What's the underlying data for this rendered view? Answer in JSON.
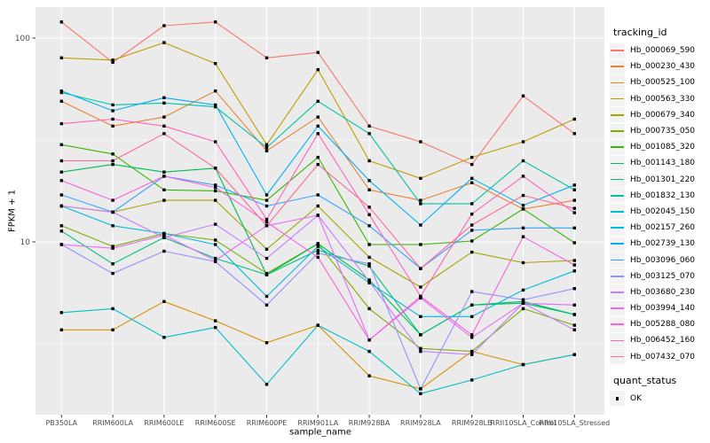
{
  "chart_data": {
    "type": "line",
    "title": "",
    "xlabel": "sample_name",
    "ylabel": "FPKM + 1",
    "y_scale": "log10",
    "y_ticks": [
      100,
      10
    ],
    "y_minor_ticks": [
      31.6,
      3.16
    ],
    "ylim_approx": [
      1.4,
      142
    ],
    "grid": "white-on-gray",
    "legend_position": "right",
    "point_shape": "filled-black-square",
    "categories": [
      "PB350LA",
      "RRIM600LA",
      "RRIM600LE",
      "RRIM600SE",
      "RRIM600PE",
      "RRIM901LA",
      "RRIM928BA",
      "RRIM928LA",
      "RRIM928LB",
      "RRII105LA_Control",
      "RRII105LA_Stressed"
    ],
    "series": [
      {
        "name": "Hb_000069_590",
        "color": "#F8766D",
        "values": [
          120,
          76,
          115,
          120,
          80,
          85,
          37,
          31,
          24,
          52,
          34
        ]
      },
      {
        "name": "Hb_000230_430",
        "color": "#EA8331",
        "values": [
          49,
          37,
          41,
          55,
          28,
          41,
          18,
          16,
          19.5,
          14.5,
          16
        ]
      },
      {
        "name": "Hb_000525_100",
        "color": "#D89000",
        "values": [
          3.7,
          3.7,
          5.1,
          4.1,
          3.2,
          3.9,
          2.2,
          1.9,
          2.9,
          2.5,
          2.8
        ]
      },
      {
        "name": "Hb_000563_330",
        "color": "#C09B00",
        "values": [
          80,
          78,
          95,
          75,
          30,
          70,
          25,
          20.5,
          26,
          31,
          40
        ]
      },
      {
        "name": "Hb_000679_340",
        "color": "#A3A500",
        "values": [
          15,
          14,
          16,
          16,
          9.2,
          15,
          8.4,
          6.0,
          8.9,
          7.9,
          8.1
        ]
      },
      {
        "name": "Hb_000735_050",
        "color": "#7CAE00",
        "values": [
          12,
          9.5,
          11,
          10.2,
          7.0,
          9.8,
          4.7,
          3.0,
          2.9,
          4.7,
          3.9
        ]
      },
      {
        "name": "Hb_001085_320",
        "color": "#39B600",
        "values": [
          30,
          27,
          18,
          17.8,
          16,
          26,
          9.7,
          9.7,
          10.1,
          14.5,
          9.9
        ]
      },
      {
        "name": "Hb_001143_180",
        "color": "#00BB4E",
        "values": [
          22,
          24,
          22,
          23,
          6.9,
          9.8,
          6.5,
          3.5,
          4.9,
          5.1,
          4.4
        ]
      },
      {
        "name": "Hb_001301_220",
        "color": "#00BF7D",
        "values": [
          11.3,
          7.8,
          10.5,
          8.3,
          6.9,
          9.1,
          7.6,
          3.5,
          4.9,
          5.0,
          4.4
        ]
      },
      {
        "name": "Hb_001832_130",
        "color": "#00C1A3",
        "values": [
          54,
          47,
          48,
          46,
          29,
          49,
          34,
          15.4,
          15.4,
          25,
          18
        ]
      },
      {
        "name": "Hb_002045_150",
        "color": "#00BFC4",
        "values": [
          4.5,
          4.7,
          3.4,
          3.8,
          2.0,
          3.9,
          2.9,
          1.8,
          2.1,
          2.5,
          2.8
        ]
      },
      {
        "name": "Hb_002157_260",
        "color": "#00BAE0",
        "values": [
          15,
          12,
          11,
          9.7,
          5.4,
          9.5,
          6.3,
          4.3,
          4.3,
          5.8,
          7.2
        ]
      },
      {
        "name": "Hb_002739_130",
        "color": "#00B0F6",
        "values": [
          55,
          44,
          51,
          47,
          17,
          37,
          20,
          12.1,
          20.5,
          15.1,
          19
        ]
      },
      {
        "name": "Hb_003096_060",
        "color": "#35A2FF",
        "values": [
          17,
          14,
          21,
          19,
          15,
          17,
          12,
          7.4,
          11.4,
          11.7,
          11.7
        ]
      },
      {
        "name": "Hb_003125_070",
        "color": "#9590FF",
        "values": [
          9.7,
          7.0,
          9.0,
          8.0,
          4.9,
          8.8,
          7.8,
          1.9,
          5.7,
          5.2,
          5.9
        ]
      },
      {
        "name": "Hb_003680_230",
        "color": "#C77CFF",
        "values": [
          15,
          14,
          10.5,
          12.2,
          8.3,
          13.5,
          6.4,
          2.9,
          2.8,
          5.0,
          3.7
        ]
      },
      {
        "name": "Hb_003994_140",
        "color": "#E76BF3",
        "values": [
          9.7,
          9.3,
          10.8,
          8.1,
          12.0,
          13.5,
          3.3,
          5.3,
          3.4,
          5.0,
          4.9
        ]
      },
      {
        "name": "Hb_005288_080",
        "color": "#FA62DB",
        "values": [
          20,
          16,
          21,
          18.5,
          12.5,
          8.4,
          3.3,
          5.4,
          3.5,
          10.6,
          7.7
        ]
      },
      {
        "name": "Hb_006452_160",
        "color": "#FF62BC",
        "values": [
          38,
          40,
          37,
          31,
          12.9,
          34,
          13.6,
          5.4,
          13.7,
          21,
          13.9
        ]
      },
      {
        "name": "Hb_007432_070",
        "color": "#FF6A98",
        "values": [
          25,
          25,
          34,
          23,
          12.0,
          24,
          14.8,
          7.4,
          12.1,
          16.9,
          14.6
        ]
      }
    ]
  },
  "legend": {
    "tracking_title": "tracking_id",
    "quant_title": "quant_status",
    "quant_value": "OK"
  },
  "theme": {
    "page_bg": "#FFFFFF",
    "panel_bg": "#EBEBEB",
    "grid_color": "#FFFFFF",
    "key_bg": "#F2F2F2",
    "tick_text_color": "#4D4D4D",
    "tick_mark_color": "#333333",
    "marker_color": "#000000"
  }
}
